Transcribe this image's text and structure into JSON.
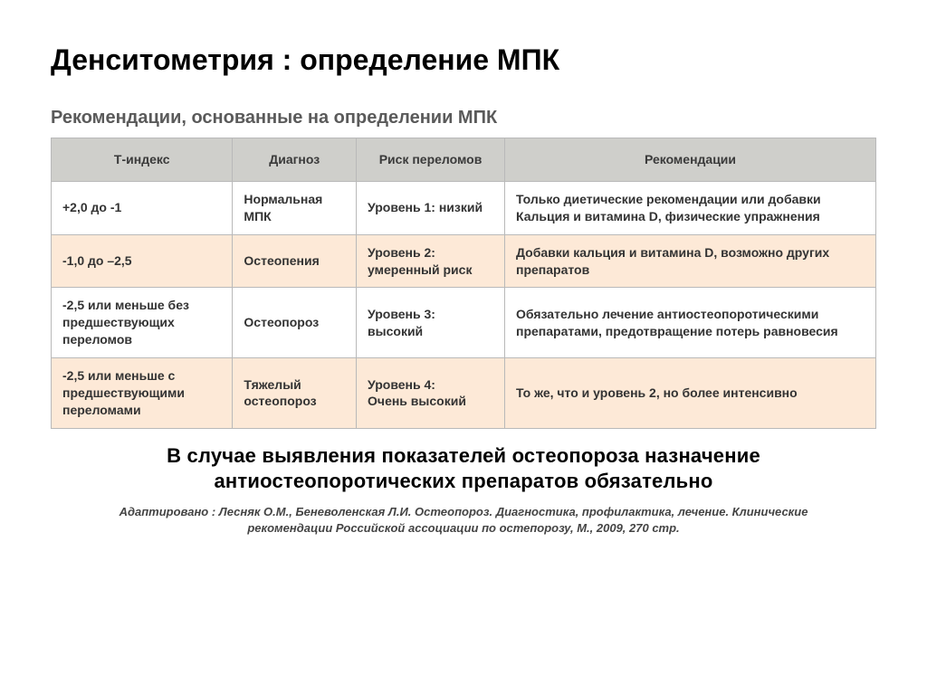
{
  "title": "Денситометрия : определение МПК",
  "subtitle": "Рекомендации, основанные на определении МПК",
  "table": {
    "columns": [
      "Т-индекс",
      "Диагноз",
      "Риск переломов",
      "Рекомендации"
    ],
    "col_widths_pct": [
      22,
      15,
      18,
      45
    ],
    "header_bg": "#cfcfcb",
    "row_bg_odd": "#ffffff",
    "row_bg_even": "#fde9d7",
    "border_color": "#b9b9b9",
    "header_fontsize_pt": 11,
    "cell_fontsize_pt": 11,
    "rows": [
      [
        "+2,0 до -1",
        "Нормальная МПК",
        "Уровень 1: низкий",
        "Только диетические рекомендации или добавки Кальция и витамина D, физические упражнения"
      ],
      [
        "-1,0 до –2,5",
        "Остеопения",
        "Уровень 2: умеренный риск",
        "Добавки кальция и витамина D, возможно других препаратов"
      ],
      [
        "-2,5 или меньше без предшествующих переломов",
        "Остеопороз",
        "Уровень 3: высокий",
        "Обязательно лечение антиостеопоротическими препаратами, предотвращение потерь равновесия"
      ],
      [
        "-2,5 или меньше с предшествующими переломами",
        "Тяжелый остеопороз",
        "Уровень 4:\nОчень высокий",
        "То же, что и уровень 2, но более интенсивно"
      ]
    ]
  },
  "note": "В случае выявления показателей  остеопороза назначение антиостеопоротических препаратов обязательно",
  "citation": "Адаптировано : Лесняк О.М., Беневоленская Л.И. Остеопороз. Диагностика, профилактика, лечение. Клинические рекомендации Российской ассоциации по остепорозу, М., 2009, 270 стр.",
  "colors": {
    "background": "#ffffff",
    "title_color": "#000000",
    "subtitle_color": "#5a5a5a",
    "cell_text": "#333333"
  },
  "typography": {
    "title_fontsize_pt": 24,
    "title_weight": 900,
    "subtitle_fontsize_pt": 15,
    "subtitle_weight": 700,
    "note_fontsize_pt": 17,
    "note_weight": 900,
    "citation_fontsize_pt": 10,
    "citation_style": "italic"
  }
}
